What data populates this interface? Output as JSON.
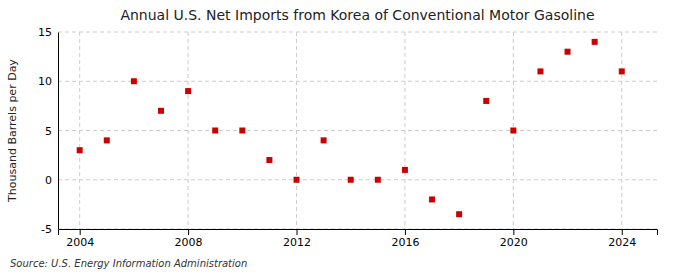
{
  "chart_data": {
    "type": "scatter",
    "title": "Annual U.S. Net Imports from Korea of Conventional Motor Gasoline",
    "ylabel": "Thousand Barrels per Day",
    "annotations": [
      "Source: U.S. Energy Information Administration"
    ],
    "x": [
      2004,
      2005,
      2006,
      2007,
      2008,
      2009,
      2010,
      2011,
      2012,
      2013,
      2014,
      2015,
      2016,
      2017,
      2018,
      2019,
      2020,
      2021,
      2022,
      2023,
      2024
    ],
    "values": [
      3.0,
      4.0,
      10.0,
      7.0,
      9.0,
      5.0,
      5.0,
      2.0,
      0.0,
      4.0,
      0.0,
      0.0,
      1.0,
      -2.0,
      -3.5,
      8.0,
      5.0,
      11.0,
      13.0,
      14.0,
      11.0
    ],
    "color": "#cc0000",
    "marker": "square",
    "xlim": [
      2003.2,
      2025.3
    ],
    "xticks": [
      2004,
      2008,
      2012,
      2016,
      2020,
      2024
    ],
    "ylim": [
      -5,
      15
    ],
    "yticks": [
      -5,
      0,
      5,
      10,
      15
    ],
    "grid": true
  }
}
